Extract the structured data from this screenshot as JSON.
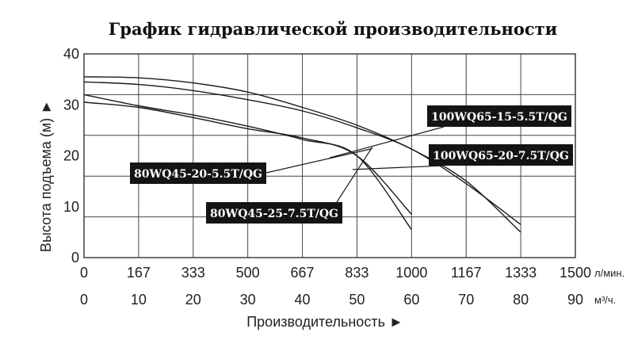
{
  "chart_data": {
    "type": "line",
    "title": "График гидравлической производительности",
    "xlabel": "Производительность ►",
    "ylabel": "Высота подъема (м) ►",
    "x_unit_primary": "л/мин.",
    "x_unit_secondary": "м³/ч.",
    "x_ticks_primary": [
      "0",
      "167",
      "333",
      "500",
      "667",
      "833",
      "1000",
      "1167",
      "1333",
      "1500"
    ],
    "x_ticks_secondary": [
      "0",
      "10",
      "20",
      "30",
      "40",
      "50",
      "60",
      "70",
      "80",
      "90"
    ],
    "y_ticks": [
      "0",
      "10",
      "20",
      "30",
      "40"
    ],
    "xlim": [
      0,
      1500
    ],
    "ylim": [
      0,
      40
    ],
    "grid": true,
    "series": [
      {
        "name": "100WQ65-15-5.5T/QG",
        "x": [
          0,
          167,
          333,
          500,
          667,
          833,
          1000,
          1167,
          1333
        ],
        "y": [
          34.5,
          34.0,
          32.8,
          31.0,
          28.8,
          25.5,
          21.3,
          14.5,
          6.5
        ]
      },
      {
        "name": "100WQ65-20-7.5T/QG",
        "x": [
          0,
          167,
          333,
          500,
          667,
          833,
          1000,
          1167,
          1333
        ],
        "y": [
          35.5,
          35.3,
          34.3,
          32.5,
          29.5,
          26.0,
          21.3,
          15.0,
          5.0
        ]
      },
      {
        "name": "80WQ45-20-5.5T/QG",
        "x": [
          0,
          167,
          333,
          500,
          667,
          833,
          1000
        ],
        "y": [
          30.5,
          29.5,
          27.5,
          25.3,
          23.5,
          20.0,
          8.5
        ]
      },
      {
        "name": "80WQ45-25-7.5T/QG",
        "x": [
          0,
          167,
          333,
          500,
          667,
          833,
          1000
        ],
        "y": [
          32.0,
          29.8,
          28.0,
          25.8,
          23.2,
          20.0,
          5.5
        ]
      }
    ],
    "annotations": [
      {
        "text": "100WQ65-15-5.5T/QG",
        "points_to_series": 0
      },
      {
        "text": "100WQ65-20-7.5T/QG",
        "points_to_series": 1
      },
      {
        "text": "80WQ45-20-5.5T/QG",
        "points_to_series": 2
      },
      {
        "text": "80WQ45-25-7.5T/QG",
        "points_to_series": 3
      }
    ]
  }
}
